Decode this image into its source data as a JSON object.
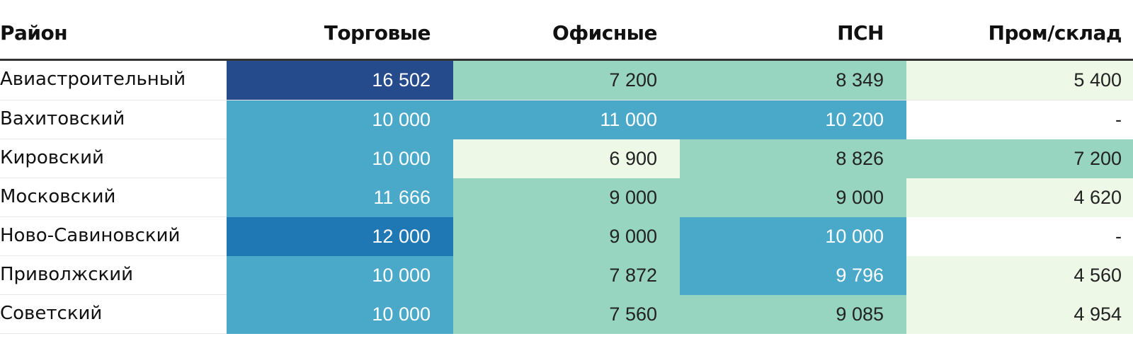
{
  "chart_data": {
    "type": "table",
    "columns": [
      "Район",
      "Торговые",
      "Офисные",
      "ПСН",
      "Пром/склад"
    ],
    "rows": [
      {
        "district": "Авиастроительный",
        "values": [
          "16 502",
          "7 200",
          "8 349",
          "5 400"
        ],
        "colors": [
          "#264b8c",
          "#97d5c0",
          "#97d5c0",
          "#eef8e6"
        ],
        "text": [
          "#ffffff",
          "#222222",
          "#222222",
          "#222222"
        ]
      },
      {
        "district": "Вахитовский",
        "values": [
          "10 000",
          "11 000",
          "10 200",
          "-"
        ],
        "colors": [
          "#4aa8c9",
          "#4aa8c9",
          "#4aa8c9",
          "#ffffff"
        ],
        "text": [
          "#ffffff",
          "#ffffff",
          "#ffffff",
          "#222222"
        ]
      },
      {
        "district": "Кировский",
        "values": [
          "10 000",
          "6 900",
          "8 826",
          "7 200"
        ],
        "colors": [
          "#4aa8c9",
          "#eef8e6",
          "#97d5c0",
          "#97d5c0"
        ],
        "text": [
          "#ffffff",
          "#222222",
          "#222222",
          "#222222"
        ]
      },
      {
        "district": "Московский",
        "values": [
          "11 666",
          "9 000",
          "9 000",
          "4 620"
        ],
        "colors": [
          "#4aa8c9",
          "#97d5c0",
          "#97d5c0",
          "#eef8e6"
        ],
        "text": [
          "#ffffff",
          "#222222",
          "#222222",
          "#222222"
        ]
      },
      {
        "district": "Ново-Савиновский",
        "values": [
          "12 000",
          "9 000",
          "10 000",
          "-"
        ],
        "colors": [
          "#1f78b4",
          "#97d5c0",
          "#4aa8c9",
          "#ffffff"
        ],
        "text": [
          "#ffffff",
          "#222222",
          "#ffffff",
          "#222222"
        ]
      },
      {
        "district": "Приволжский",
        "values": [
          "10 000",
          "7 872",
          "9 796",
          "4 560"
        ],
        "colors": [
          "#4aa8c9",
          "#97d5c0",
          "#4aa8c9",
          "#eef8e6"
        ],
        "text": [
          "#ffffff",
          "#222222",
          "#ffffff",
          "#222222"
        ]
      },
      {
        "district": "Советский",
        "values": [
          "10 000",
          "7 560",
          "9 085",
          "4 954"
        ],
        "colors": [
          "#4aa8c9",
          "#97d5c0",
          "#97d5c0",
          "#eef8e6"
        ],
        "text": [
          "#ffffff",
          "#222222",
          "#222222",
          "#222222"
        ]
      }
    ]
  }
}
